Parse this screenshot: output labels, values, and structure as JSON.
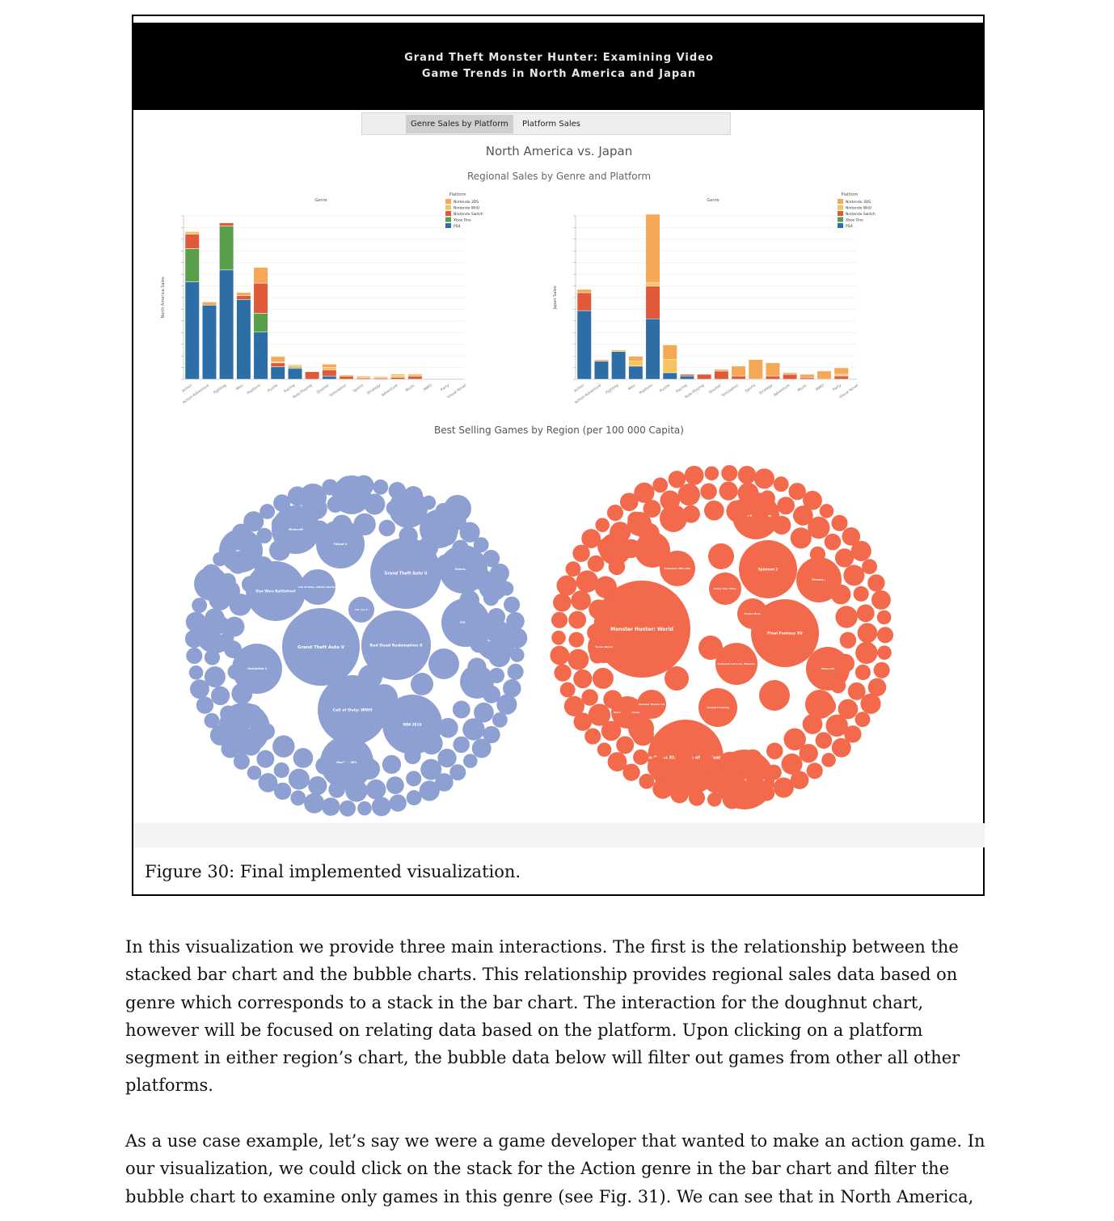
{
  "app": {
    "title_lines": [
      "Grand Theft Monster Hunter: Examining Video",
      "Game Trends in North America and Japan"
    ],
    "tabs": [
      "Genre Sales by Platform",
      "Platform Sales"
    ],
    "dashboard_title": "North America vs. Japan",
    "section_bar_title": "Regional Sales by Genre and Platform",
    "section_bubble_title": "Best Selling Games by Region (per 100 000 Capita)"
  },
  "chart_data": [
    {
      "type": "bar",
      "stacked": true,
      "title": "Genre",
      "ylabel": "North America Sales",
      "ylim": [
        0,
        26
      ],
      "legend_title": "Platform",
      "legend_position": "top-right",
      "categories": [
        "Action",
        "Action-Adventure",
        "Fighting",
        "Misc",
        "Platform",
        "Puzzle",
        "Racing",
        "Role-Playing",
        "Shooter",
        "Simulation",
        "Sports",
        "Strategy",
        "Adventure",
        "Music",
        "MMO",
        "Party",
        "Visual Novel"
      ],
      "series": [
        {
          "name": "Nintendo 3DS",
          "color": "#f5a855",
          "values": [
            0,
            0.5,
            0,
            0.5,
            2.5,
            0.8,
            0.2,
            0,
            0.5,
            0,
            0,
            0.1,
            0.2,
            0.1,
            0,
            0,
            0
          ]
        },
        {
          "name": "Nintendo WiiU",
          "color": "#f7c35c",
          "values": [
            0.4,
            0,
            0,
            0,
            0,
            0.2,
            0.2,
            0,
            0.4,
            0.2,
            0.3,
            0.2,
            0.3,
            0.3,
            0,
            0,
            0
          ]
        },
        {
          "name": "Nintendo Switch",
          "color": "#e05a3a",
          "values": [
            2.3,
            0,
            0.5,
            0.6,
            4.8,
            0.6,
            0,
            1.2,
            1.0,
            0.5,
            0.2,
            0.2,
            0.3,
            0.5,
            0,
            0,
            0
          ]
        },
        {
          "name": "Xbox One",
          "color": "#5a9e4c",
          "values": [
            5.3,
            0,
            7.0,
            0,
            3.0,
            0,
            0.2,
            0,
            0,
            0,
            0,
            0,
            0,
            0,
            0,
            0,
            0
          ]
        },
        {
          "name": "PS4",
          "color": "#2e6ea6",
          "values": [
            15.5,
            11.8,
            17.4,
            12.7,
            7.5,
            2.0,
            1.7,
            0,
            0.5,
            0,
            0,
            0,
            0,
            0,
            0,
            0,
            0
          ]
        }
      ]
    },
    {
      "type": "bar",
      "stacked": true,
      "title": "Genre",
      "ylabel": "Japan Sales",
      "ylim": [
        0,
        10
      ],
      "legend_title": "Platform",
      "legend_position": "top-right",
      "categories": [
        "Action",
        "Action-Adventure",
        "Fighting",
        "Misc",
        "Platform",
        "Puzzle",
        "Racing",
        "Role-Playing",
        "Shooter",
        "Simulation",
        "Sports",
        "Strategy",
        "Adventure",
        "Music",
        "MMO",
        "Party",
        "Visual Novel"
      ],
      "series": [
        {
          "name": "Nintendo 3DS",
          "color": "#f5a855",
          "values": [
            0.2,
            0.1,
            0,
            0.3,
            4.2,
            0.9,
            0,
            0,
            0.1,
            0.6,
            1.2,
            0.8,
            0.1,
            0.2,
            0.5,
            0.4,
            0
          ]
        },
        {
          "name": "Nintendo WiiU",
          "color": "#f7c35c",
          "values": [
            0,
            0,
            0.1,
            0.3,
            0.2,
            0.8,
            0,
            0,
            0,
            0,
            0,
            0,
            0,
            0,
            0,
            0.1,
            0
          ]
        },
        {
          "name": "Nintendo Switch",
          "color": "#e05a3a",
          "values": [
            1.1,
            0,
            0,
            0,
            2.0,
            0,
            0.1,
            0.3,
            0.5,
            0.2,
            0,
            0.2,
            0.3,
            0.1,
            0,
            0.2,
            0
          ]
        },
        {
          "name": "Xbox One",
          "color": "#5a9e4c",
          "values": [
            0,
            0,
            0,
            0,
            0,
            0,
            0,
            0,
            0,
            0,
            0,
            0,
            0,
            0,
            0,
            0,
            0
          ]
        },
        {
          "name": "PS4",
          "color": "#2e6ea6",
          "values": [
            4.2,
            1.1,
            1.7,
            0.8,
            3.7,
            0.4,
            0.2,
            0,
            0,
            0,
            0,
            0,
            0,
            0,
            0,
            0,
            0
          ]
        }
      ]
    }
  ],
  "bubbles": {
    "north_america": {
      "color": "#8e9fd2",
      "labels": [
        "Grand Theft Auto V",
        "Red Dead Redemption II",
        "Call of Duty: WWII",
        "Grand Theft Auto V",
        "Star Wars Battlefront",
        "Fallout 4",
        "Minecraft",
        "Uncharted 4",
        "NBA 2K18",
        "Madden NFL",
        "Battlefield 1",
        "Destiny",
        "FIFA 18",
        "Overwatch",
        "Call of Duty: Infinite Warfare",
        "Far Cry 5",
        "Spider-Man",
        "God of War"
      ]
    },
    "japan": {
      "color": "#f26a4b",
      "labels": [
        "Monster Hunter: World",
        "Dragon Quest XI: Echoes of an Elusive Age",
        "Final Fantasy XV",
        "Dragon Quest Heroes",
        "Splatoon 2",
        "Pokemon Let's Go, Pikachu!",
        "Mario Kart 8 Deluxe",
        "Monster Hunter XX",
        "Super Mario Odyssey",
        "Animal Crossing",
        "Minecraft",
        "Persona 5",
        "Yo-kai Watch",
        "Kirby Star Allies",
        "Smash Bros.",
        "Pokemon Ultra Sun"
      ]
    }
  },
  "figure_caption": "Figure 30: Final implemented visualization.",
  "paragraph_1": [
    "In this visualization we provide three main interactions. The first is the relationship between the",
    "stacked bar chart and the bubble charts. This relationship provides regional sales data based on",
    "genre which corresponds to a stack in the bar chart.  The interaction for the doughnut chart,",
    "however will be focused on relating data based on the platform. Upon clicking on a platform",
    "segment in either region’s chart, the bubble data below will filter out games from other all other",
    "platforms."
  ],
  "paragraph_2": [
    "As a use case example, let’s say we were a game developer that wanted to make an action game. In",
    "our visualization, we could click on the stack for the Action genre in the bar chart and filter the",
    "bubble chart to examine only games in this genre (see Fig. 31). We can see that in North America,"
  ]
}
